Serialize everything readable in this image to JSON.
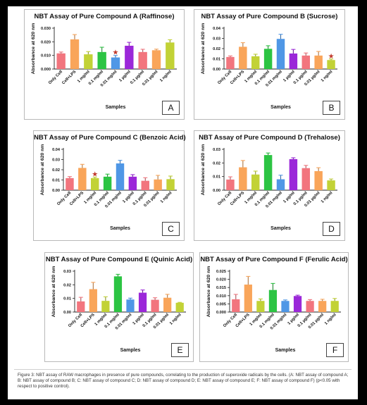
{
  "caption": "Figure 3: NBT assay of RAW macrophages in presence of pure compounds, correlating to the production of superoxide radicals by the cells. (A: NBT assay of compound A; B: NBT assay of compound B; C: NBT assay of compound C; D: NBT assay of compound D; E: NBT assay of compound E; F: NBT assay of compound F) (p<0.05 with respect to positive control).",
  "chart_data": [
    {
      "type": "bar",
      "letter": "A",
      "title": "NBT Assay of Pure Compound A (Raffinose)",
      "ylabel": "Absorbance at 620 nm",
      "xlabel": "Samples",
      "ylim": [
        0,
        0.03
      ],
      "yticks": [
        "0.000",
        "0.010",
        "0.020",
        "0.030"
      ],
      "categories": [
        "Only Cell",
        "Cell+LPS",
        "1 mg/ml",
        "0.1 mg/ml",
        "0.01 mg/ml",
        "1 µg/ml",
        "0.1 µg/ml",
        "0.01 µg/ml",
        "1 ng/ml"
      ],
      "values": [
        0.0115,
        0.0218,
        0.0108,
        0.0125,
        0.0085,
        0.0171,
        0.0125,
        0.0138,
        0.0195
      ],
      "errors": [
        0.001,
        0.0035,
        0.002,
        0.0035,
        0.0015,
        0.0025,
        0.002,
        0.0008,
        0.002
      ],
      "colors": [
        "#f2757e",
        "#f9a55a",
        "#c2d236",
        "#2cc443",
        "#4f97e6",
        "#9b28d9",
        "#f2757e",
        "#f9a55a",
        "#c2d236"
      ],
      "significant": [
        4
      ]
    },
    {
      "type": "bar",
      "letter": "B",
      "title": "NBT Assay of Pure Compound B (Sucrose)",
      "ylabel": "Absorbance at 620 nm",
      "xlabel": "Samples",
      "ylim": [
        0,
        0.04
      ],
      "yticks": [
        "0.00",
        "0.01",
        "0.02",
        "0.03",
        "0.04"
      ],
      "categories": [
        "Only Cell",
        "Cell+LPS",
        "1 mg/ml",
        "0.1 mg/ml",
        "0.01 mg/ml",
        "1 µg/ml",
        "0.1 µg/ml",
        "0.01 µg/ml",
        "1 ng/ml"
      ],
      "values": [
        0.0118,
        0.0218,
        0.0125,
        0.0198,
        0.0295,
        0.0152,
        0.0132,
        0.0132,
        0.0088
      ],
      "errors": [
        0.001,
        0.004,
        0.002,
        0.003,
        0.0045,
        0.004,
        0.0025,
        0.004,
        0.001
      ],
      "colors": [
        "#f2757e",
        "#f9a55a",
        "#c2d236",
        "#2cc443",
        "#4f97e6",
        "#9b28d9",
        "#f2757e",
        "#f9a55a",
        "#c2d236"
      ],
      "significant": [
        8
      ]
    },
    {
      "type": "bar",
      "letter": "C",
      "title": "NBT Assay of Pure Compound C (Benzoic Acid)",
      "ylabel": "Absorbance at 620 nm",
      "xlabel": "Samples",
      "ylim": [
        0,
        0.04
      ],
      "yticks": [
        "0.00",
        "0.01",
        "0.02",
        "0.03",
        "0.04"
      ],
      "categories": [
        "Only Cell",
        "Cell+LPS",
        "1 mg/ml",
        "0.1 mg/ml",
        "0.01 mg/ml",
        "1 µg/ml",
        "0.1 µg/ml",
        "0.01 µg/ml",
        "1 ng/ml"
      ],
      "values": [
        0.0118,
        0.0218,
        0.0118,
        0.0132,
        0.0262,
        0.0132,
        0.0092,
        0.0105,
        0.0108
      ],
      "errors": [
        0.0015,
        0.0035,
        0.001,
        0.0025,
        0.003,
        0.002,
        0.003,
        0.004,
        0.003
      ],
      "colors": [
        "#f2757e",
        "#f9a55a",
        "#c2d236",
        "#2cc443",
        "#4f97e6",
        "#9b28d9",
        "#f2757e",
        "#f9a55a",
        "#c2d236"
      ],
      "significant": [
        2
      ]
    },
    {
      "type": "bar",
      "letter": "D",
      "title": "NBT Assay of Pure Compound D (Trehalose)",
      "ylabel": "Absorbance at 620 nm",
      "xlabel": "Samples",
      "ylim": [
        0,
        0.03
      ],
      "yticks": [
        "0.00",
        "0.01",
        "0.02",
        "0.03"
      ],
      "categories": [
        "Only Cell",
        "Cell+LPS",
        "1 mg/ml",
        "0.1 mg/ml",
        "0.01 mg/ml",
        "1 µg/ml",
        "0.1 µg/ml",
        "0.01 µg/ml",
        "1 ng/ml"
      ],
      "values": [
        0.0078,
        0.0168,
        0.0115,
        0.0258,
        0.008,
        0.0228,
        0.0162,
        0.014,
        0.0072
      ],
      "errors": [
        0.002,
        0.005,
        0.0025,
        0.0015,
        0.003,
        0.001,
        0.002,
        0.0025,
        0.001
      ],
      "colors": [
        "#f2757e",
        "#f9a55a",
        "#c2d236",
        "#2cc443",
        "#4f97e6",
        "#9b28d9",
        "#f2757e",
        "#f9a55a",
        "#c2d236"
      ],
      "significant": []
    },
    {
      "type": "bar",
      "letter": "E",
      "title": "NBT Assay of Pure Compound E (Quinic Acid)",
      "ylabel": "Absorbance at 620 nm",
      "xlabel": "Samples",
      "ylim": [
        0,
        0.03
      ],
      "yticks": [
        "0.00",
        "0.01",
        "0.02",
        "0.03"
      ],
      "categories": [
        "Only Cell",
        "Cell+LPS",
        "1 mg/ml",
        "0.1 mg/ml",
        "0.01 mg/ml",
        "1 µg/ml",
        "0.1 µg/ml",
        "0.01 µg/ml",
        "1 ng/ml"
      ],
      "values": [
        0.0078,
        0.0168,
        0.0082,
        0.0262,
        0.0092,
        0.0142,
        0.009,
        0.0105,
        0.0068
      ],
      "errors": [
        0.003,
        0.005,
        0.003,
        0.0015,
        0.001,
        0.002,
        0.0015,
        0.0025,
        0.0003
      ],
      "colors": [
        "#f2757e",
        "#f9a55a",
        "#c2d236",
        "#2cc443",
        "#4f97e6",
        "#9b28d9",
        "#f2757e",
        "#f9a55a",
        "#c2d236"
      ],
      "significant": []
    },
    {
      "type": "bar",
      "letter": "F",
      "title": "NBT Assay of Pure Compound F (Ferulic Acid)",
      "ylabel": "Absorbance at 620 nm",
      "xlabel": "Samples",
      "ylim": [
        0,
        0.025
      ],
      "yticks": [
        "0.000",
        "0.005",
        "0.010",
        "0.015",
        "0.020",
        "0.025"
      ],
      "categories": [
        "Only Cell",
        "Cell+LPS",
        "1 mg/ml",
        "0.1 mg/ml",
        "0.01 mg/ml",
        "1 µg/ml",
        "0.1 µg/ml",
        "0.01 µg/ml",
        "1 ng/ml"
      ],
      "values": [
        0.0078,
        0.0168,
        0.0068,
        0.0135,
        0.0068,
        0.0098,
        0.0068,
        0.0068,
        0.0068
      ],
      "errors": [
        0.003,
        0.005,
        0.0012,
        0.004,
        0.0006,
        0.0005,
        0.0008,
        0.001,
        0.0015
      ],
      "colors": [
        "#f2757e",
        "#f9a55a",
        "#c2d236",
        "#2cc443",
        "#4f97e6",
        "#9b28d9",
        "#f2757e",
        "#f9a55a",
        "#c2d236"
      ],
      "significant": []
    }
  ]
}
